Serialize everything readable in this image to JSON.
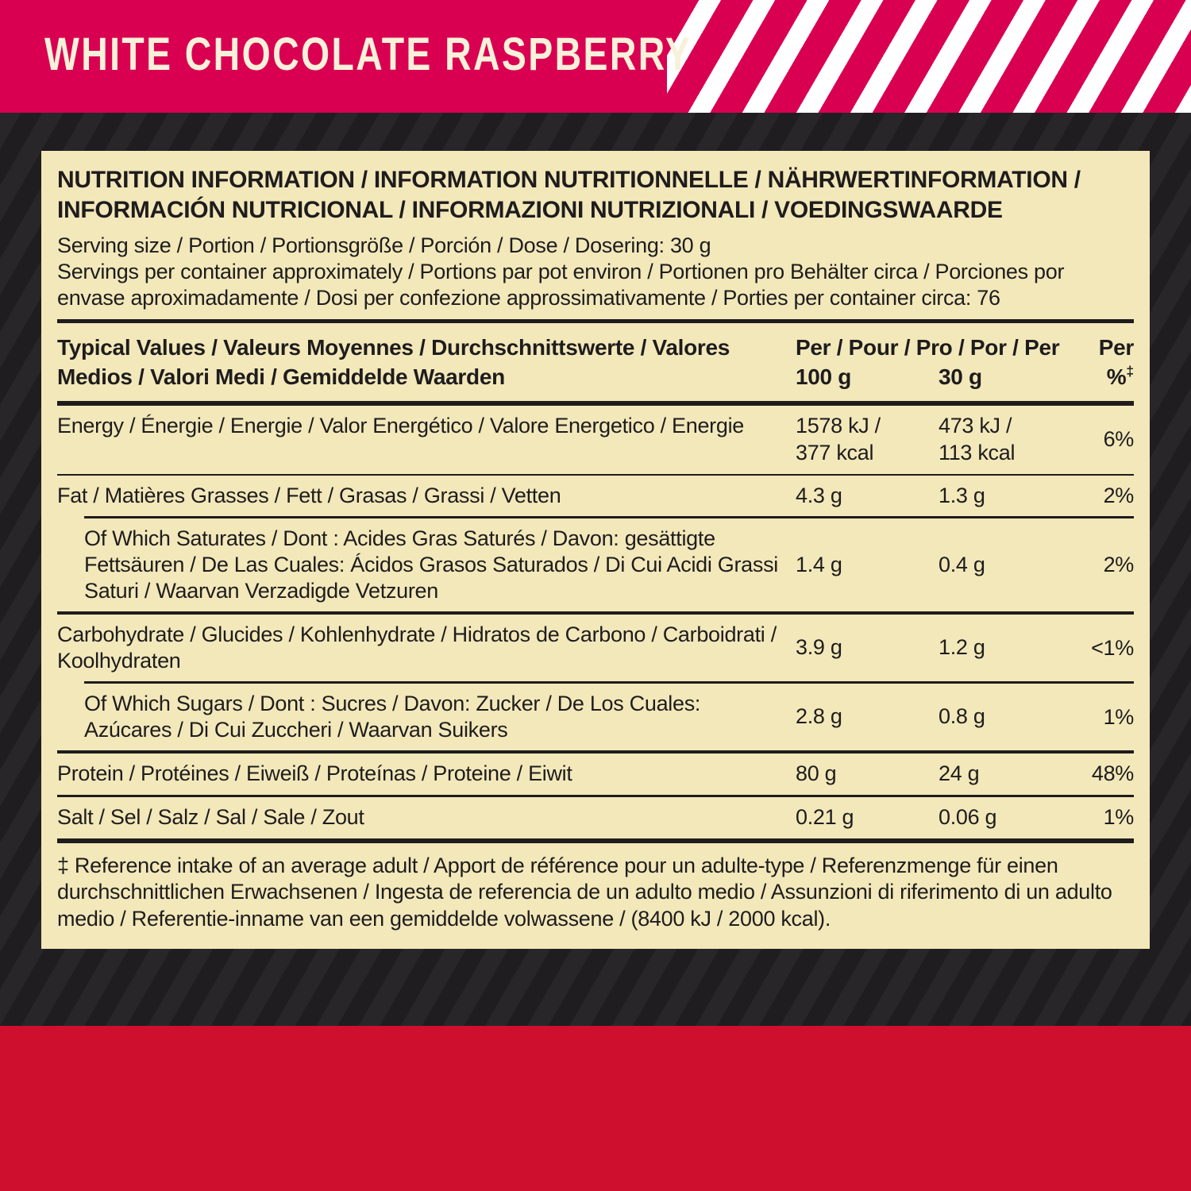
{
  "banner": {
    "flavor": "WHITE CHOCOLATE RASPBERRY"
  },
  "colors": {
    "banner_pink": "#d90052",
    "stripe_white": "#ffffff",
    "background_dark": "#1f1d20",
    "background_dark_stripe": "#282629",
    "bottom_red": "#ce102e",
    "panel_cream": "#f2e8ba",
    "text_dark": "#1f1c1d"
  },
  "panel": {
    "title": "NUTRITION INFORMATION / INFORMATION NUTRITIONNELLE / NÄHRWERTINFORMATION / INFORMACIÓN NUTRICIONAL / INFORMAZIONI NUTRIZIONALI / VOEDINGSWAARDE",
    "serving_size": "Serving size / Portion / Portionsgröße / Porción / Dose / Dosering: 30 g",
    "servings_per_container": "Servings per container approximately / Portions par pot environ / Portionen pro Behälter circa / Porciones por envase aproximadamente / Dosi per confezione approssimativamente / Porties per container circa: 76",
    "footnote": "‡ Reference intake of an average adult / Apport de référence pour un adulte-type / Referenzmenge für einen durchschnittlichen Erwachsenen / Ingesta de referencia de un adulto medio / Assunzioni di riferimento di un adulto medio / Referentie-inname van een gemiddelde volwassene / (8400 kJ / 2000 kcal)."
  },
  "table": {
    "header": {
      "label": "Typical Values / Valeurs Moyennes / Durchschnittswerte / Valores Medios / Valori Medi / Gemiddelde Waarden",
      "per_left": "Per / Pour / Pro / Por / Per",
      "per_right": "Per",
      "col_100g": "100 g",
      "col_30g": "30 g",
      "col_pct": "%",
      "dagger": "‡"
    },
    "rows": [
      {
        "label": "Energy / Énergie / Energie / Valor Energético / Valore Energetico / Energie",
        "per_100g": "1578 kJ /\n377 kcal",
        "per_30g": "473 kJ /\n113 kcal",
        "percent": "6%"
      },
      {
        "label": "Fat / Matières Grasses / Fett / Grasas / Grassi / Vetten",
        "per_100g": "4.3 g",
        "per_30g": "1.3 g",
        "percent": "2%"
      },
      {
        "label": "Of Which Saturates / Dont : Acides Gras Saturés / Davon: gesättigte Fettsäuren / De Las Cuales: Ácidos Grasos Saturados / Di Cui Acidi Grassi Saturi / Waarvan Verzadigde Vetzuren",
        "per_100g": "1.4 g",
        "per_30g": "0.4 g",
        "percent": "2%"
      },
      {
        "label": "Carbohydrate / Glucides / Kohlenhydrate / Hidratos de Carbono / Carboidrati / Koolhydraten",
        "per_100g": "3.9 g",
        "per_30g": "1.2 g",
        "percent": "<1%"
      },
      {
        "label": "Of Which Sugars / Dont : Sucres / Davon: Zucker / De Los Cuales: Azúcares / Di Cui Zuccheri / Waarvan Suikers",
        "per_100g": "2.8 g",
        "per_30g": "0.8 g",
        "percent": "1%"
      },
      {
        "label": "Protein / Protéines / Eiweiß / Proteínas / Proteine / Eiwit",
        "per_100g": "80 g",
        "per_30g": "24 g",
        "percent": "48%"
      },
      {
        "label": "Salt / Sel / Salz / Sal / Sale / Zout",
        "per_100g": "0.21 g",
        "per_30g": "0.06 g",
        "percent": "1%"
      }
    ]
  }
}
